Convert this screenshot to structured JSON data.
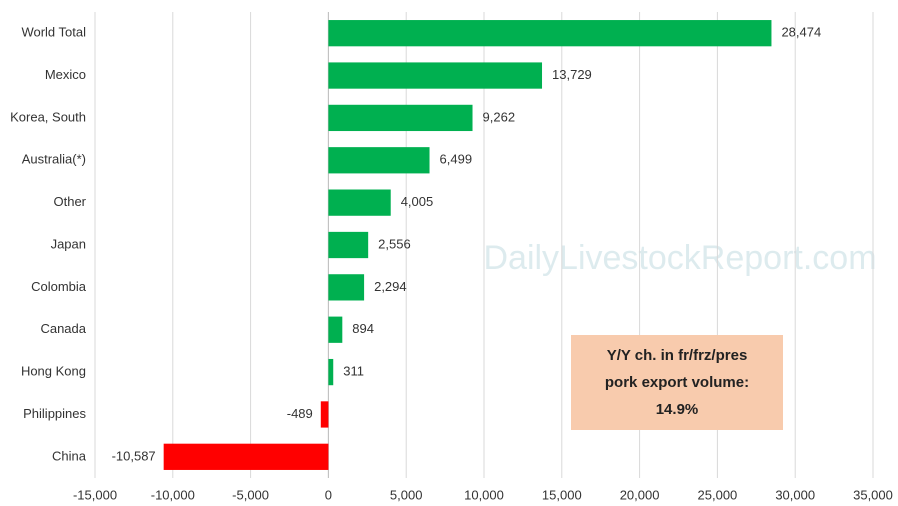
{
  "chart_data": {
    "type": "hbar",
    "categories": [
      "World Total",
      "Mexico",
      "Korea, South",
      "Australia(*)",
      "Other",
      "Japan",
      "Colombia",
      "Canada",
      "Hong Kong",
      "Philippines",
      "China"
    ],
    "values": [
      28474,
      13729,
      9262,
      6499,
      4005,
      2556,
      2294,
      894,
      311,
      -489,
      -10587
    ],
    "value_labels": [
      "28,474",
      "13,729",
      "9,262",
      "6,499",
      "4,005",
      "2,556",
      "2,294",
      "894",
      "311",
      "-489",
      "-10,587"
    ],
    "colors": [
      "#00b050",
      "#00b050",
      "#00b050",
      "#00b050",
      "#00b050",
      "#00b050",
      "#00b050",
      "#00b050",
      "#00b050",
      "#ff0000",
      "#ff0000"
    ],
    "xlim": [
      -15000,
      35000
    ],
    "xticks": [
      {
        "value": -15000,
        "label": "-15,000"
      },
      {
        "value": -10000,
        "label": "-10,000"
      },
      {
        "value": -5000,
        "label": "-5,000"
      },
      0,
      {
        "value": 5000,
        "label": "5,000"
      },
      {
        "value": 10000,
        "label": "10,000"
      },
      {
        "value": 15000,
        "label": "15,000"
      },
      {
        "value": 20000,
        "label": "20,000"
      },
      {
        "value": 25000,
        "label": "25,000"
      },
      {
        "value": 30000,
        "label": "30,000"
      },
      {
        "value": 35000,
        "label": "35,000"
      }
    ],
    "grid": true,
    "annotation": {
      "lines": [
        "Y/Y ch. in fr/frz/pres",
        "pork export volume:",
        "14.9%"
      ]
    },
    "watermark": "DailyLivestockReport.com"
  }
}
